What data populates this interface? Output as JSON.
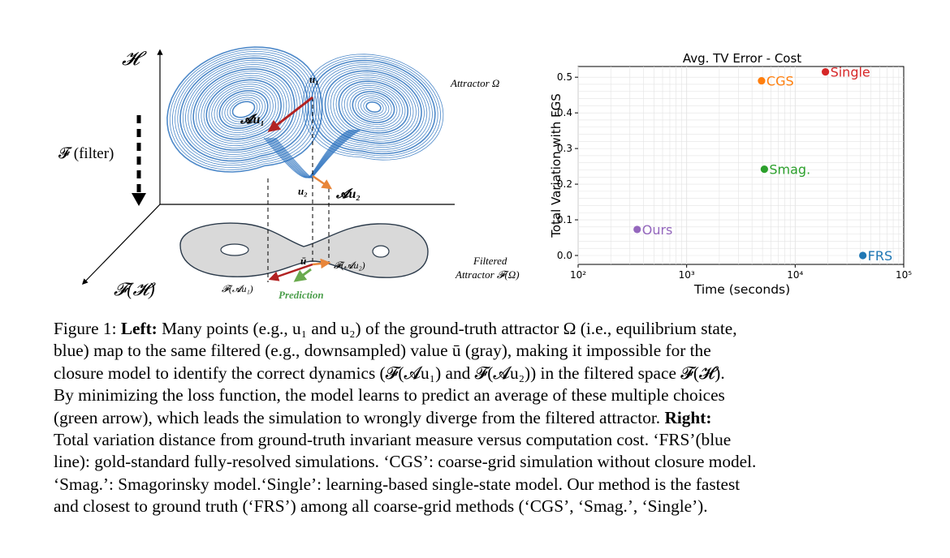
{
  "left_panel": {
    "axis_h": "𝓗",
    "axis_fh": "𝓕(𝓗)",
    "filter_label": "𝓕 (filter)",
    "attractor_label": "Attractor Ω",
    "filtered_label_line1": "Filtered",
    "filtered_label_line2": "Attractor 𝓕(Ω)",
    "u1": "u₁",
    "u2": "u₂",
    "au1": "𝓐u₁",
    "au2": "𝓐u₂",
    "ubar": "ū",
    "fau1": "𝓕(𝓐u₁)",
    "fau2": "𝓕(𝓐u₂)",
    "prediction": "Prediction",
    "colors": {
      "attractor": "#2f74c0",
      "red_arrow": "#b22222",
      "orange_arrow": "#e8863a",
      "green_arrow": "#6aaa4e",
      "filtered_fill": "#d9d9d9"
    }
  },
  "chart_data": {
    "type": "scatter",
    "title": "Avg. TV Error - Cost",
    "xlabel": "Time (seconds)",
    "ylabel": "Total Variation with FGS",
    "xscale": "log",
    "xlim": [
      100,
      100000
    ],
    "ylim": [
      -0.025,
      0.53
    ],
    "xticks": [
      100,
      1000,
      10000,
      100000
    ],
    "xtick_labels": [
      "10²",
      "10³",
      "10⁴",
      "10⁵"
    ],
    "yticks": [
      0.0,
      0.1,
      0.2,
      0.3,
      0.4,
      0.5
    ],
    "ytick_labels": [
      "0.0",
      "0.1",
      "0.2",
      "0.3",
      "0.4",
      "0.5"
    ],
    "grid": true,
    "points": [
      {
        "name": "Ours",
        "x": 350,
        "y": 0.073,
        "color": "#9467bd"
      },
      {
        "name": "CGS",
        "x": 4900,
        "y": 0.49,
        "color": "#ff7f0e"
      },
      {
        "name": "Single",
        "x": 19000,
        "y": 0.515,
        "color": "#d62728"
      },
      {
        "name": "Smag.",
        "x": 5200,
        "y": 0.242,
        "color": "#2ca02c"
      },
      {
        "name": "FRS",
        "x": 42000,
        "y": 0.0,
        "color": "#1f77b4"
      }
    ]
  },
  "caption": {
    "fig": "Figure 1: ",
    "left": "Left:",
    "t1": " Many points (e.g., u₁ and u₂) of the ground-truth attractor Ω (i.e., equilibrium state,",
    "t2": "blue) map to the same filtered (e.g., downsampled) value ū (gray), making it impossible for the",
    "t3": "closure model to identify the correct dynamics (𝓕(𝓐u₁) and 𝓕(𝓐u₂)) in the filtered space 𝓕(𝓗).",
    "t4": "By minimizing the loss function, the model learns to predict an average of these multiple choices",
    "t5": "(green arrow), which leads the simulation to wrongly diverge from the filtered attractor. ",
    "right": "Right:",
    "t6": "Total variation distance from ground-truth invariant measure versus computation cost. ‘FRS’(blue",
    "t7": "line): gold-standard fully-resolved simulations. ‘CGS’: coarse-grid simulation without closure model.",
    "t8": "‘Smag.’: Smagorinsky model.‘Single’: learning-based single-state model. Our method is the fastest",
    "t9": "and closest to ground truth (‘FRS’) among all coarse-grid methods (‘CGS’, ‘Smag.’, ‘Single’)."
  }
}
